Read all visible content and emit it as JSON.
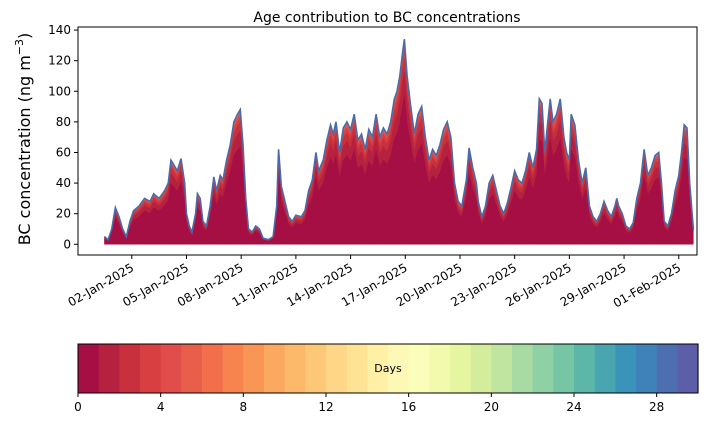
{
  "chart_data": {
    "type": "area",
    "title": "Age contribution to BC concentrations",
    "ylabel": "BC concentration (ng m",
    "ylabel_sup": "−3",
    "ylabel_close": ")",
    "ylim": [
      -7,
      142
    ],
    "yticks": [
      0,
      20,
      40,
      60,
      80,
      100,
      120,
      140
    ],
    "xlim": [
      0.05,
      34.0
    ],
    "x_data_range": [
      1.5,
      33.8
    ],
    "xticks": [
      {
        "pos": 3,
        "label": "02-Jan-2025"
      },
      {
        "pos": 6,
        "label": "05-Jan-2025"
      },
      {
        "pos": 9,
        "label": "08-Jan-2025"
      },
      {
        "pos": 12,
        "label": "11-Jan-2025"
      },
      {
        "pos": 15,
        "label": "14-Jan-2025"
      },
      {
        "pos": 18,
        "label": "17-Jan-2025"
      },
      {
        "pos": 21,
        "label": "20-Jan-2025"
      },
      {
        "pos": 24,
        "label": "23-Jan-2025"
      },
      {
        "pos": 27,
        "label": "26-Jan-2025"
      },
      {
        "pos": 30,
        "label": "29-Jan-2025"
      },
      {
        "pos": 33,
        "label": "01-Feb-2025"
      }
    ],
    "total_keypoints": [
      [
        1.5,
        5
      ],
      [
        1.7,
        3
      ],
      [
        1.9,
        10
      ],
      [
        2.1,
        24
      ],
      [
        2.3,
        18
      ],
      [
        2.5,
        10
      ],
      [
        2.7,
        5
      ],
      [
        2.9,
        15
      ],
      [
        3.1,
        22
      ],
      [
        3.4,
        25
      ],
      [
        3.7,
        30
      ],
      [
        4.0,
        28
      ],
      [
        4.2,
        33
      ],
      [
        4.5,
        30
      ],
      [
        4.8,
        35
      ],
      [
        5.0,
        40
      ],
      [
        5.15,
        55
      ],
      [
        5.3,
        52
      ],
      [
        5.5,
        48
      ],
      [
        5.7,
        56
      ],
      [
        5.9,
        40
      ],
      [
        6.0,
        20
      ],
      [
        6.15,
        12
      ],
      [
        6.3,
        8
      ],
      [
        6.5,
        20
      ],
      [
        6.6,
        33
      ],
      [
        6.75,
        30
      ],
      [
        6.9,
        15
      ],
      [
        7.1,
        12
      ],
      [
        7.3,
        25
      ],
      [
        7.5,
        44
      ],
      [
        7.65,
        35
      ],
      [
        7.85,
        45
      ],
      [
        8.0,
        42
      ],
      [
        8.2,
        55
      ],
      [
        8.4,
        65
      ],
      [
        8.6,
        80
      ],
      [
        8.8,
        85
      ],
      [
        8.95,
        88
      ],
      [
        9.1,
        65
      ],
      [
        9.25,
        30
      ],
      [
        9.4,
        10
      ],
      [
        9.6,
        8
      ],
      [
        9.8,
        12
      ],
      [
        10.0,
        10
      ],
      [
        10.2,
        4
      ],
      [
        10.5,
        3
      ],
      [
        10.75,
        5
      ],
      [
        10.95,
        25
      ],
      [
        11.05,
        62
      ],
      [
        11.2,
        38
      ],
      [
        11.4,
        28
      ],
      [
        11.6,
        18
      ],
      [
        11.8,
        15
      ],
      [
        12.0,
        19
      ],
      [
        12.3,
        18
      ],
      [
        12.5,
        22
      ],
      [
        12.7,
        35
      ],
      [
        12.9,
        42
      ],
      [
        13.1,
        60
      ],
      [
        13.25,
        48
      ],
      [
        13.5,
        55
      ],
      [
        13.7,
        68
      ],
      [
        13.9,
        78
      ],
      [
        14.05,
        72
      ],
      [
        14.2,
        80
      ],
      [
        14.4,
        60
      ],
      [
        14.6,
        76
      ],
      [
        14.8,
        80
      ],
      [
        15.0,
        75
      ],
      [
        15.2,
        85
      ],
      [
        15.4,
        68
      ],
      [
        15.6,
        72
      ],
      [
        15.8,
        62
      ],
      [
        16.0,
        75
      ],
      [
        16.2,
        70
      ],
      [
        16.4,
        85
      ],
      [
        16.6,
        70
      ],
      [
        16.8,
        76
      ],
      [
        17.0,
        72
      ],
      [
        17.2,
        80
      ],
      [
        17.4,
        95
      ],
      [
        17.55,
        100
      ],
      [
        17.7,
        110
      ],
      [
        17.85,
        125
      ],
      [
        17.95,
        134
      ],
      [
        18.1,
        110
      ],
      [
        18.3,
        90
      ],
      [
        18.5,
        72
      ],
      [
        18.7,
        85
      ],
      [
        18.9,
        90
      ],
      [
        19.1,
        70
      ],
      [
        19.3,
        55
      ],
      [
        19.5,
        62
      ],
      [
        19.7,
        58
      ],
      [
        19.9,
        65
      ],
      [
        20.1,
        75
      ],
      [
        20.3,
        80
      ],
      [
        20.5,
        70
      ],
      [
        20.7,
        40
      ],
      [
        20.9,
        28
      ],
      [
        21.1,
        25
      ],
      [
        21.35,
        42
      ],
      [
        21.5,
        63
      ],
      [
        21.7,
        50
      ],
      [
        21.9,
        40
      ],
      [
        22.0,
        28
      ],
      [
        22.2,
        18
      ],
      [
        22.4,
        25
      ],
      [
        22.6,
        40
      ],
      [
        22.8,
        45
      ],
      [
        23.0,
        35
      ],
      [
        23.2,
        25
      ],
      [
        23.4,
        20
      ],
      [
        23.6,
        27
      ],
      [
        23.8,
        37
      ],
      [
        24.0,
        48
      ],
      [
        24.2,
        42
      ],
      [
        24.4,
        40
      ],
      [
        24.6,
        48
      ],
      [
        24.8,
        60
      ],
      [
        25.0,
        50
      ],
      [
        25.2,
        62
      ],
      [
        25.35,
        95
      ],
      [
        25.5,
        92
      ],
      [
        25.65,
        60
      ],
      [
        25.8,
        78
      ],
      [
        25.95,
        95
      ],
      [
        26.1,
        80
      ],
      [
        26.3,
        85
      ],
      [
        26.5,
        95
      ],
      [
        26.7,
        70
      ],
      [
        26.85,
        60
      ],
      [
        27.0,
        55
      ],
      [
        27.1,
        85
      ],
      [
        27.3,
        78
      ],
      [
        27.5,
        55
      ],
      [
        27.7,
        40
      ],
      [
        27.9,
        50
      ],
      [
        28.1,
        25
      ],
      [
        28.3,
        18
      ],
      [
        28.5,
        15
      ],
      [
        28.7,
        20
      ],
      [
        28.9,
        28
      ],
      [
        29.1,
        22
      ],
      [
        29.3,
        18
      ],
      [
        29.5,
        25
      ],
      [
        29.6,
        30
      ],
      [
        29.7,
        25
      ],
      [
        29.9,
        20
      ],
      [
        30.1,
        12
      ],
      [
        30.3,
        10
      ],
      [
        30.5,
        14
      ],
      [
        30.7,
        30
      ],
      [
        30.9,
        40
      ],
      [
        31.1,
        62
      ],
      [
        31.3,
        45
      ],
      [
        31.5,
        50
      ],
      [
        31.7,
        58
      ],
      [
        31.9,
        60
      ],
      [
        32.05,
        40
      ],
      [
        32.2,
        15
      ],
      [
        32.4,
        12
      ],
      [
        32.6,
        20
      ],
      [
        32.8,
        35
      ],
      [
        33.0,
        45
      ],
      [
        33.15,
        60
      ],
      [
        33.3,
        78
      ],
      [
        33.45,
        76
      ],
      [
        33.6,
        40
      ],
      [
        33.8,
        10
      ]
    ],
    "colorbar": {
      "label": "Days",
      "min": 0,
      "max": 30,
      "ticks": [
        0,
        4,
        8,
        12,
        16,
        20,
        24,
        28
      ],
      "colors": [
        "#a50f44",
        "#b6213f",
        "#c7303c",
        "#d73f40",
        "#e04d4a",
        "#e95e4a",
        "#f36f4c",
        "#f7844f",
        "#f99656",
        "#fba860",
        "#fcb96a",
        "#fdc778",
        "#fed688",
        "#fee395",
        "#fff0a6",
        "#fef8b6",
        "#fbfdba",
        "#f2faad",
        "#e6f59f",
        "#d4ed9c",
        "#c0e5a0",
        "#a8dba4",
        "#8fd1a4",
        "#76c6a5",
        "#5db7a9",
        "#49a6b0",
        "#3a93b8",
        "#3f81b9",
        "#4d6eb0",
        "#5d5ea8"
      ]
    }
  }
}
